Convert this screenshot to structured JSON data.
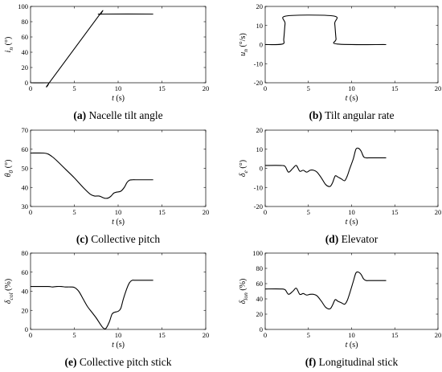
{
  "figure": {
    "panels": [
      {
        "tag": "(a)",
        "caption": "Nacelle tilt angle"
      },
      {
        "tag": "(b)",
        "caption": "Tilt angular rate"
      },
      {
        "tag": "(c)",
        "caption": "Collective pitch"
      },
      {
        "tag": "(d)",
        "caption": "Elevator"
      },
      {
        "tag": "(e)",
        "caption": "Collective pitch stick"
      },
      {
        "tag": "(f)",
        "caption": "Longitudinal stick"
      }
    ]
  },
  "chart_data": [
    {
      "type": "line",
      "title": "",
      "xlabel": "t (s)",
      "ylabel": "i_n (°)",
      "xlim": [
        0,
        20
      ],
      "ylim": [
        0,
        100
      ],
      "xticks": [
        0,
        5,
        10,
        15,
        20
      ],
      "yticks": [
        0,
        20,
        40,
        60,
        80,
        100
      ],
      "x": [
        0,
        2.0,
        2.2,
        7.8,
        8.0,
        8.2,
        14
      ],
      "y": [
        0,
        0,
        1,
        88,
        89.5,
        90,
        90
      ]
    },
    {
      "type": "line",
      "title": "",
      "xlabel": "t (s)",
      "ylabel": "u_n (°/s)",
      "xlim": [
        0,
        20
      ],
      "ylim": [
        -20,
        20
      ],
      "xticks": [
        0,
        5,
        10,
        15,
        20
      ],
      "yticks": [
        -20,
        -10,
        0,
        10,
        20
      ],
      "x": [
        0,
        2.0,
        2.15,
        2.3,
        2.45,
        7.9,
        8.05,
        8.2,
        8.35,
        14
      ],
      "y": [
        0,
        0.3,
        3,
        11,
        15,
        15,
        11,
        3,
        0.3,
        0
      ]
    },
    {
      "type": "line",
      "title": "",
      "xlabel": "t (s)",
      "ylabel": "θ_0 (°)",
      "xlim": [
        0,
        20
      ],
      "ylim": [
        30,
        70
      ],
      "xticks": [
        0,
        5,
        10,
        15,
        20
      ],
      "yticks": [
        30,
        40,
        50,
        60,
        70
      ],
      "x": [
        0,
        1.5,
        2.0,
        2.5,
        3.0,
        4.0,
        5.0,
        6.0,
        6.8,
        7.3,
        7.8,
        8.1,
        8.5,
        8.9,
        9.2,
        9.5,
        9.8,
        10.3,
        10.7,
        11.0,
        11.3,
        11.7,
        12.0,
        14
      ],
      "y": [
        58,
        58,
        57.5,
        56,
        54,
        49.5,
        45,
        40,
        36.5,
        35.5,
        35.5,
        35,
        34.3,
        34.5,
        35.5,
        37,
        37.5,
        38,
        40,
        42.5,
        43.8,
        44,
        44,
        44
      ]
    },
    {
      "type": "line",
      "title": "",
      "xlabel": "t (s)",
      "ylabel": "δ_e (°)",
      "xlim": [
        0,
        20
      ],
      "ylim": [
        -20,
        20
      ],
      "xticks": [
        0,
        5,
        10,
        15,
        20
      ],
      "yticks": [
        -20,
        -10,
        0,
        10,
        20
      ],
      "x": [
        0,
        1.8,
        2.3,
        2.7,
        3.2,
        3.6,
        4.0,
        4.4,
        4.8,
        5.2,
        5.6,
        6.0,
        6.5,
        7.0,
        7.5,
        7.8,
        8.1,
        8.4,
        8.8,
        9.2,
        9.5,
        9.8,
        10.2,
        10.5,
        10.8,
        11.1,
        11.4,
        11.7,
        12.0,
        14
      ],
      "y": [
        1.5,
        1.5,
        1,
        -2,
        0,
        1.5,
        -1.5,
        -1,
        -2,
        -1,
        -1,
        -2,
        -5,
        -8.5,
        -9.5,
        -7.5,
        -4,
        -4.5,
        -5.5,
        -6.5,
        -4,
        0,
        5,
        10,
        10.5,
        9,
        6,
        5.5,
        5.5,
        5.5
      ]
    },
    {
      "type": "line",
      "title": "",
      "xlabel": "t (s)",
      "ylabel": "δ_col (%)",
      "xlim": [
        0,
        20
      ],
      "ylim": [
        0,
        80
      ],
      "xticks": [
        0,
        5,
        10,
        15,
        20
      ],
      "yticks": [
        0,
        20,
        40,
        60,
        80
      ],
      "x": [
        0,
        2.0,
        2.5,
        3.0,
        3.5,
        4.0,
        4.5,
        5.0,
        5.5,
        6.0,
        6.5,
        7.0,
        7.5,
        8.0,
        8.3,
        8.6,
        9.0,
        9.3,
        9.6,
        10.0,
        10.3,
        10.6,
        11.0,
        11.3,
        11.6,
        12.0,
        14
      ],
      "y": [
        45,
        45,
        44.5,
        45,
        45,
        44.5,
        44.5,
        44,
        40,
        32,
        24,
        18,
        12,
        5,
        1.5,
        1,
        8,
        16,
        18,
        19,
        22,
        32,
        43,
        49,
        51.5,
        51.5,
        51.5
      ]
    },
    {
      "type": "line",
      "title": "",
      "xlabel": "t (s)",
      "ylabel": "δ_lon (%)",
      "xlim": [
        0,
        20
      ],
      "ylim": [
        0,
        100
      ],
      "xticks": [
        0,
        5,
        10,
        15,
        20
      ],
      "yticks": [
        0,
        20,
        40,
        60,
        80,
        100
      ],
      "x": [
        0,
        1.8,
        2.3,
        2.7,
        3.2,
        3.6,
        4.0,
        4.4,
        4.8,
        5.2,
        5.6,
        6.0,
        6.5,
        7.0,
        7.5,
        7.8,
        8.1,
        8.4,
        8.8,
        9.2,
        9.5,
        9.8,
        10.2,
        10.5,
        10.8,
        11.1,
        11.4,
        11.7,
        12.0,
        14
      ],
      "y": [
        53,
        53,
        52,
        46,
        50,
        54,
        46,
        47,
        45,
        46,
        46,
        44,
        37,
        29,
        27,
        32,
        39,
        37,
        35,
        33,
        38,
        48,
        63,
        74,
        75,
        72,
        66,
        64,
        64,
        64
      ]
    }
  ]
}
